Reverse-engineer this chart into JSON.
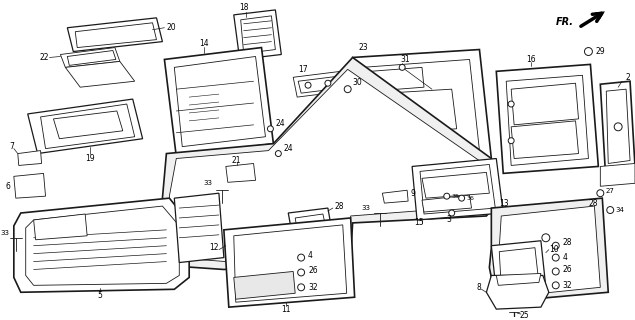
{
  "bg_color": "#ffffff",
  "line_color": "#1a1a1a",
  "fig_width": 6.35,
  "fig_height": 3.2,
  "dpi": 100
}
